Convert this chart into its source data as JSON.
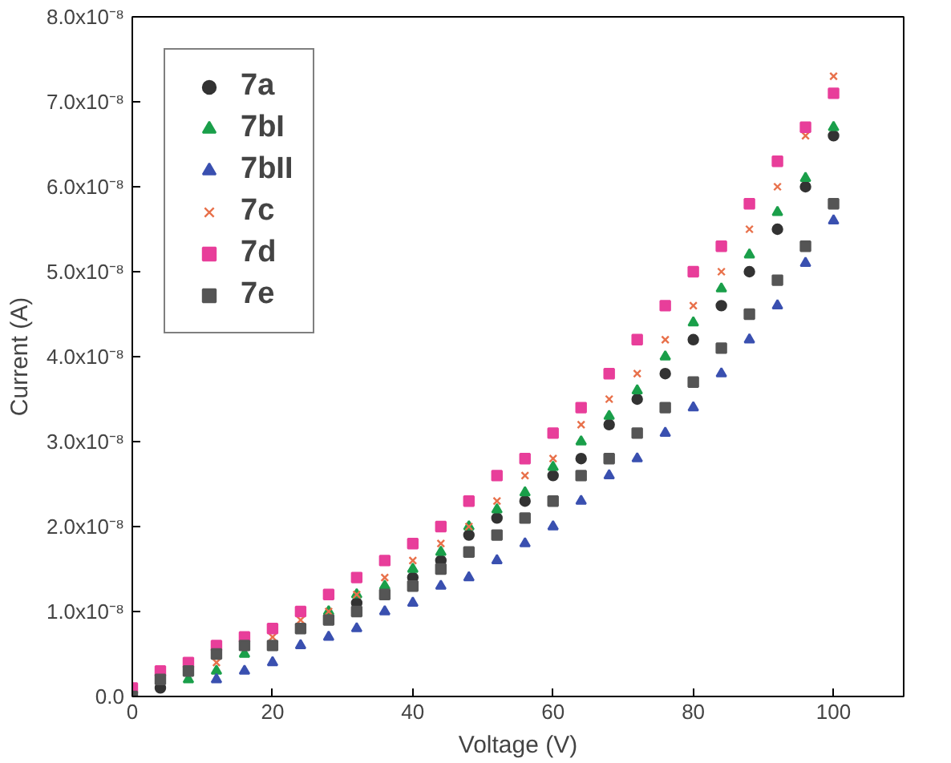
{
  "chart_data": {
    "type": "scatter",
    "xlabel": "Voltage (V)",
    "ylabel": "Current (A)",
    "x": [
      0,
      4,
      8,
      12,
      16,
      20,
      24,
      28,
      32,
      36,
      40,
      44,
      48,
      52,
      56,
      60,
      64,
      68,
      72,
      76,
      80,
      84,
      88,
      92,
      96,
      100
    ],
    "xlim": [
      0,
      110
    ],
    "xticks": [
      0,
      20,
      40,
      60,
      80,
      100
    ],
    "ylim": [
      0,
      8e-08
    ],
    "yticks": [
      {
        "value": 0,
        "label": "0.0"
      },
      {
        "value": 1e-08,
        "label": "1.0x10⁻⁸"
      },
      {
        "value": 2e-08,
        "label": "2.0x10⁻⁸"
      },
      {
        "value": 3e-08,
        "label": "3.0x10⁻⁸"
      },
      {
        "value": 4e-08,
        "label": "4.0x10⁻⁸"
      },
      {
        "value": 5e-08,
        "label": "5.0x10⁻⁸"
      },
      {
        "value": 6e-08,
        "label": "6.0x10⁻⁸"
      },
      {
        "value": 7e-08,
        "label": "7.0x10⁻⁸"
      },
      {
        "value": 8e-08,
        "label": "8.0x10⁻⁸"
      }
    ],
    "grid": false,
    "legend": "top left",
    "series": [
      {
        "name": "7a",
        "color": "#333333",
        "marker": "circle",
        "values": [
          null,
          1e-09,
          null,
          null,
          null,
          null,
          null,
          null,
          1.1e-08,
          null,
          1.4e-08,
          1.6e-08,
          1.9e-08,
          2.1e-08,
          2.3e-08,
          2.6e-08,
          2.8e-08,
          3.2e-08,
          3.5e-08,
          3.8e-08,
          4.2e-08,
          4.6e-08,
          5e-08,
          5.5e-08,
          6e-08,
          6.6e-08
        ]
      },
      {
        "name": "7bI",
        "color": "#1a9f4a",
        "marker": "triangle",
        "values": [
          null,
          null,
          2e-09,
          3e-09,
          5e-09,
          null,
          null,
          1e-08,
          1.2e-08,
          1.3e-08,
          1.5e-08,
          1.7e-08,
          2e-08,
          2.2e-08,
          2.4e-08,
          2.7e-08,
          3e-08,
          3.3e-08,
          3.6e-08,
          4e-08,
          4.4e-08,
          4.8e-08,
          5.2e-08,
          5.7e-08,
          6.1e-08,
          6.7e-08
        ]
      },
      {
        "name": "7bII",
        "color": "#3a50b0",
        "marker": "triangle",
        "values": [
          null,
          null,
          null,
          2e-09,
          3e-09,
          4e-09,
          6e-09,
          7e-09,
          8e-09,
          1e-08,
          1.1e-08,
          1.3e-08,
          1.4e-08,
          1.6e-08,
          1.8e-08,
          2e-08,
          2.3e-08,
          2.6e-08,
          2.8e-08,
          3.1e-08,
          3.4e-08,
          3.8e-08,
          4.2e-08,
          4.6e-08,
          5.1e-08,
          5.6e-08
        ]
      },
      {
        "name": "7c",
        "color": "#e8704a",
        "marker": "cross",
        "values": [
          null,
          null,
          null,
          4e-09,
          null,
          7e-09,
          9e-09,
          1e-08,
          1.2e-08,
          1.4e-08,
          1.6e-08,
          1.8e-08,
          2e-08,
          2.3e-08,
          2.6e-08,
          2.8e-08,
          3.2e-08,
          3.5e-08,
          3.8e-08,
          4.2e-08,
          4.6e-08,
          5e-08,
          5.5e-08,
          6e-08,
          6.6e-08,
          7.3e-08
        ]
      },
      {
        "name": "7d",
        "color": "#e83e9a",
        "marker": "square",
        "values": [
          1e-09,
          3e-09,
          4e-09,
          6e-09,
          7e-09,
          8e-09,
          1e-08,
          1.2e-08,
          1.4e-08,
          1.6e-08,
          1.8e-08,
          2e-08,
          2.3e-08,
          2.6e-08,
          2.8e-08,
          3.1e-08,
          3.4e-08,
          3.8e-08,
          4.2e-08,
          4.6e-08,
          5e-08,
          5.3e-08,
          5.8e-08,
          6.3e-08,
          6.7e-08,
          7.1e-08
        ]
      },
      {
        "name": "7e",
        "color": "#555555",
        "marker": "square",
        "values": [
          0,
          2e-09,
          3e-09,
          5e-09,
          6e-09,
          6e-09,
          8e-09,
          9e-09,
          1e-08,
          1.2e-08,
          1.3e-08,
          1.5e-08,
          1.7e-08,
          1.9e-08,
          2.1e-08,
          2.3e-08,
          2.6e-08,
          2.8e-08,
          3.1e-08,
          3.4e-08,
          3.7e-08,
          4.1e-08,
          4.5e-08,
          4.9e-08,
          5.3e-08,
          5.8e-08
        ]
      }
    ]
  }
}
